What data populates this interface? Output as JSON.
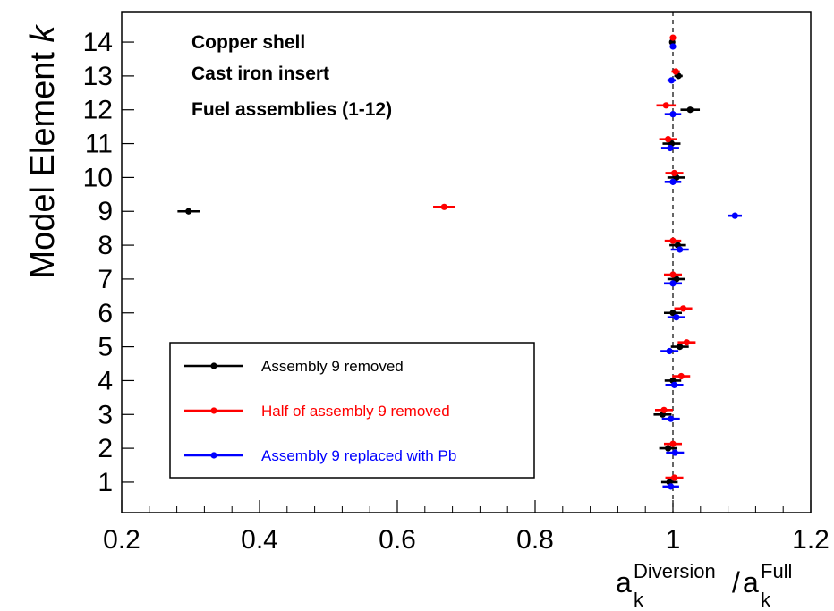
{
  "chart_data": {
    "type": "scatter",
    "title": "",
    "ylabel": "Model Element",
    "ylabel_var": "k",
    "xlabel_parts": {
      "base": "a",
      "num_sub": "k",
      "num_sup": "Diversion",
      "slash": "/",
      "den_sub": "k",
      "den_sup": "Full"
    },
    "xlim": [
      0.2,
      1.2
    ],
    "ylim": [
      0.1,
      14.9
    ],
    "x_ticks": [
      0.2,
      0.4,
      0.6,
      0.8,
      1,
      1.2
    ],
    "x_tick_labels": [
      "0.2",
      "0.4",
      "0.6",
      "0.8",
      "1",
      "1.2"
    ],
    "y_ticks": [
      1,
      2,
      3,
      4,
      5,
      6,
      7,
      8,
      9,
      10,
      11,
      12,
      13,
      14
    ],
    "y_tick_labels": [
      "1",
      "2",
      "3",
      "4",
      "5",
      "6",
      "7",
      "8",
      "9",
      "10",
      "11",
      "12",
      "13",
      "14"
    ],
    "reference_line_x": 1.0,
    "grid": false,
    "annotations": [
      "Copper shell",
      "Cast iron insert",
      "Fuel assemblies (1-12)"
    ],
    "legend_position": "bottom-left",
    "series": [
      {
        "name": "Assembly 9 removed",
        "color": "#000000",
        "offset": 0,
        "points": [
          {
            "y": 1,
            "x": 0.995,
            "err": 0.012
          },
          {
            "y": 2,
            "x": 0.993,
            "err": 0.013
          },
          {
            "y": 3,
            "x": 0.985,
            "err": 0.013
          },
          {
            "y": 4,
            "x": 1.0,
            "err": 0.012
          },
          {
            "y": 5,
            "x": 1.01,
            "err": 0.013
          },
          {
            "y": 6,
            "x": 1.0,
            "err": 0.013
          },
          {
            "y": 7,
            "x": 1.005,
            "err": 0.013
          },
          {
            "y": 8,
            "x": 1.007,
            "err": 0.012
          },
          {
            "y": 9,
            "x": 0.297,
            "err": 0.016
          },
          {
            "y": 10,
            "x": 1.005,
            "err": 0.013
          },
          {
            "y": 11,
            "x": 0.998,
            "err": 0.013
          },
          {
            "y": 12,
            "x": 1.025,
            "err": 0.014
          },
          {
            "y": 13,
            "x": 1.008,
            "err": 0.006
          },
          {
            "y": 14,
            "x": 0.999,
            "err": 0.004
          }
        ]
      },
      {
        "name": "Half of assembly 9 removed",
        "color": "#ff0000",
        "offset": 0.13,
        "points": [
          {
            "y": 1,
            "x": 1.002,
            "err": 0.013
          },
          {
            "y": 2,
            "x": 1.0,
            "err": 0.013
          },
          {
            "y": 3,
            "x": 0.987,
            "err": 0.013
          },
          {
            "y": 4,
            "x": 1.012,
            "err": 0.013
          },
          {
            "y": 5,
            "x": 1.02,
            "err": 0.013
          },
          {
            "y": 6,
            "x": 1.015,
            "err": 0.013
          },
          {
            "y": 7,
            "x": 1.0,
            "err": 0.013
          },
          {
            "y": 8,
            "x": 1.0,
            "err": 0.012
          },
          {
            "y": 9,
            "x": 0.668,
            "err": 0.016
          },
          {
            "y": 10,
            "x": 1.002,
            "err": 0.013
          },
          {
            "y": 11,
            "x": 0.993,
            "err": 0.013
          },
          {
            "y": 12,
            "x": 0.99,
            "err": 0.014
          },
          {
            "y": 13,
            "x": 1.004,
            "err": 0.006
          },
          {
            "y": 14,
            "x": 1.0,
            "err": 0.004
          }
        ]
      },
      {
        "name": "Assembly 9 replaced with Pb",
        "color": "#0000ff",
        "offset": -0.13,
        "points": [
          {
            "y": 1,
            "x": 0.997,
            "err": 0.012
          },
          {
            "y": 2,
            "x": 1.003,
            "err": 0.013
          },
          {
            "y": 3,
            "x": 0.997,
            "err": 0.013
          },
          {
            "y": 4,
            "x": 1.002,
            "err": 0.013
          },
          {
            "y": 5,
            "x": 0.995,
            "err": 0.013
          },
          {
            "y": 6,
            "x": 1.005,
            "err": 0.013
          },
          {
            "y": 7,
            "x": 1.0,
            "err": 0.013
          },
          {
            "y": 8,
            "x": 1.01,
            "err": 0.013
          },
          {
            "y": 9,
            "x": 1.09,
            "err": 0.01
          },
          {
            "y": 10,
            "x": 1.0,
            "err": 0.012
          },
          {
            "y": 11,
            "x": 0.996,
            "err": 0.013
          },
          {
            "y": 12,
            "x": 1.0,
            "err": 0.012
          },
          {
            "y": 13,
            "x": 0.998,
            "err": 0.006
          },
          {
            "y": 14,
            "x": 1.0,
            "err": 0.004
          }
        ]
      }
    ]
  }
}
